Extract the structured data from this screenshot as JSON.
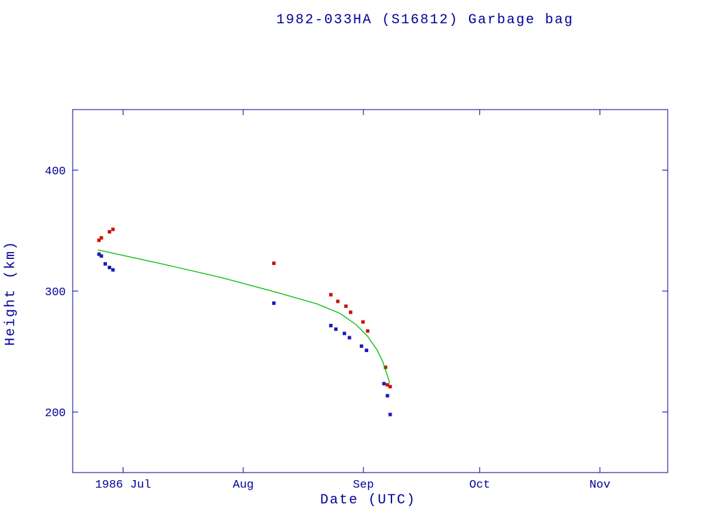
{
  "chart_data": {
    "type": "scatter",
    "title": "1982-033HA (S16812) Garbage bag",
    "xlabel": "Date (UTC)",
    "ylabel": "Height (km)",
    "x_unit": "days since 1986-06-01",
    "xlim": [
      17,
      170.5
    ],
    "ylim": [
      150,
      450
    ],
    "grid": false,
    "legend": "none",
    "frame_color": "#000099",
    "x_ticks": [
      {
        "value": 30,
        "label": "1986 Jul"
      },
      {
        "value": 61,
        "label": "Aug"
      },
      {
        "value": 92,
        "label": "Sep"
      },
      {
        "value": 122,
        "label": "Oct"
      },
      {
        "value": 153,
        "label": "Nov"
      }
    ],
    "y_ticks": [
      {
        "value": 200,
        "label": "200"
      },
      {
        "value": 300,
        "label": "300"
      },
      {
        "value": 400,
        "label": "400"
      }
    ],
    "series": [
      {
        "name": "red-points",
        "kind": "points",
        "marker": "square",
        "color": "#cc1100",
        "points": [
          [
            23.8,
            342
          ],
          [
            24.4,
            344
          ],
          [
            26.5,
            349
          ],
          [
            27.4,
            351
          ],
          [
            68.9,
            323
          ],
          [
            83.6,
            297
          ],
          [
            85.4,
            291.5
          ],
          [
            87.5,
            287.5
          ],
          [
            88.7,
            282.5
          ],
          [
            91.9,
            274.5
          ],
          [
            93.1,
            267
          ],
          [
            97.7,
            237
          ],
          [
            98.2,
            222.5
          ],
          [
            98.9,
            221
          ]
        ]
      },
      {
        "name": "blue-points",
        "kind": "points",
        "marker": "square",
        "color": "#1a1ab8",
        "points": [
          [
            23.8,
            330.5
          ],
          [
            24.4,
            329
          ],
          [
            25.4,
            322.5
          ],
          [
            26.5,
            319.5
          ],
          [
            27.4,
            317.5
          ],
          [
            68.9,
            290
          ],
          [
            83.6,
            271.5
          ],
          [
            84.9,
            268.5
          ],
          [
            87.1,
            265
          ],
          [
            88.4,
            261.5
          ],
          [
            91.5,
            254.5
          ],
          [
            92.8,
            251
          ],
          [
            97.3,
            223.5
          ],
          [
            98.2,
            213.5
          ],
          [
            98.9,
            198
          ]
        ]
      },
      {
        "name": "green-curve",
        "kind": "line",
        "color": "#00bb00",
        "points": [
          [
            23.5,
            334
          ],
          [
            40,
            322.5
          ],
          [
            55,
            311.5
          ],
          [
            69,
            299.5
          ],
          [
            80,
            289.5
          ],
          [
            86,
            281.5
          ],
          [
            90,
            272.5
          ],
          [
            93,
            263
          ],
          [
            95.5,
            251.5
          ],
          [
            97,
            241.5
          ],
          [
            98.1,
            231
          ],
          [
            98.8,
            224
          ]
        ]
      }
    ]
  }
}
